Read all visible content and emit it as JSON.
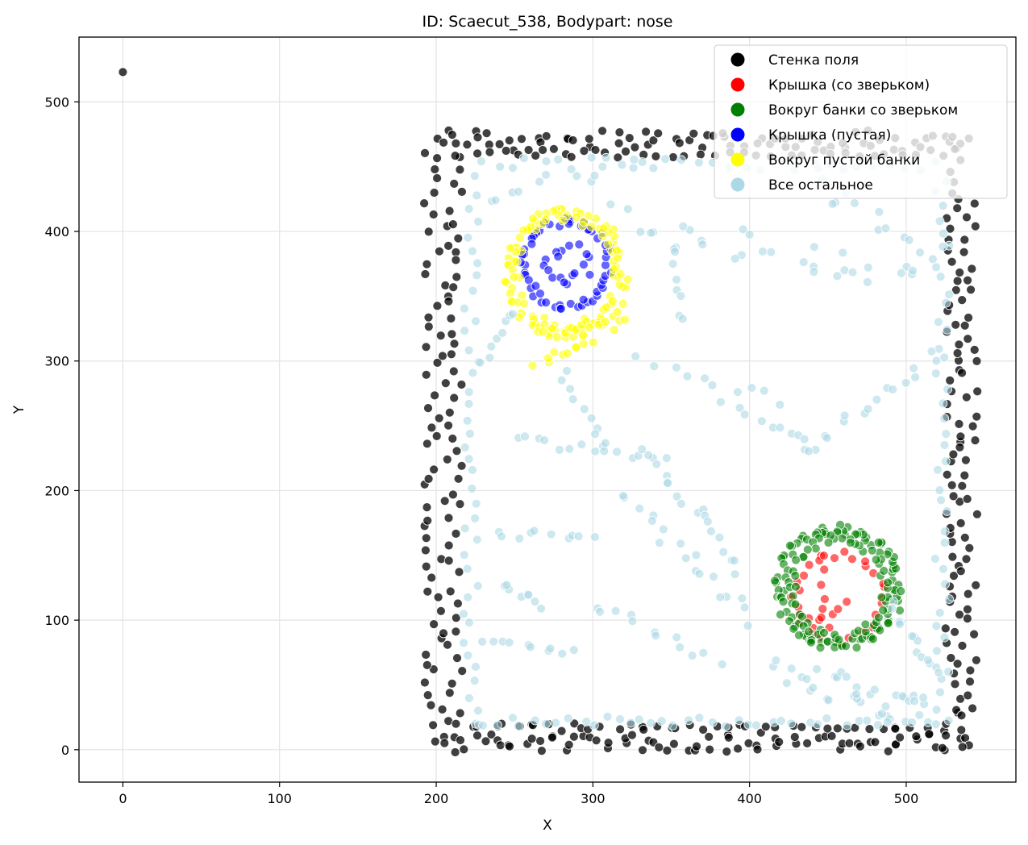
{
  "chart_data": {
    "type": "scatter",
    "title": "ID: Scaecut_538, Bodypart: nose",
    "xlabel": "X",
    "ylabel": "Y",
    "xlim": [
      -28,
      570
    ],
    "ylim": [
      -25,
      550
    ],
    "xticks": [
      0,
      100,
      200,
      300,
      400,
      500
    ],
    "yticks": [
      0,
      100,
      200,
      300,
      400,
      500
    ],
    "grid": true,
    "legend_position": "top-right",
    "series": [
      {
        "name": "Стенка поля",
        "color": "#000000",
        "opacity": 0.75,
        "groups": [
          {
            "shape": "point",
            "x": 0,
            "y": 523
          },
          {
            "shape": "line",
            "from": [
              200,
              5
            ],
            "to": [
              200,
              470
            ],
            "n": 60,
            "jitter": [
              8,
              3
            ]
          },
          {
            "shape": "line",
            "from": [
              212,
              470
            ],
            "to": [
              212,
              10
            ],
            "n": 45,
            "jitter": [
              5,
              3
            ]
          },
          {
            "shape": "line",
            "from": [
              205,
              5
            ],
            "to": [
              540,
              5
            ],
            "n": 75,
            "jitter": [
              4,
              7
            ]
          },
          {
            "shape": "line",
            "from": [
              215,
              18
            ],
            "to": [
              525,
              15
            ],
            "n": 45,
            "jitter": [
              4,
              3
            ]
          },
          {
            "shape": "line",
            "from": [
              205,
              470
            ],
            "to": [
              540,
              470
            ],
            "n": 75,
            "jitter": [
              4,
              8
            ]
          },
          {
            "shape": "line",
            "from": [
              215,
              460
            ],
            "to": [
              525,
              460
            ],
            "n": 35,
            "jitter": [
              4,
              3
            ]
          },
          {
            "shape": "line",
            "from": [
              530,
              10
            ],
            "to": [
              530,
              470
            ],
            "n": 60,
            "jitter": [
              5,
              3
            ]
          },
          {
            "shape": "line",
            "from": [
              540,
              5
            ],
            "to": [
              540,
              420
            ],
            "n": 45,
            "jitter": [
              6,
              3
            ]
          }
        ]
      },
      {
        "name": "Крышка (со зверьком)",
        "color": "#ff0000",
        "opacity": 0.6,
        "groups": [
          {
            "shape": "ring",
            "cx": 457,
            "cy": 117,
            "rx": 28,
            "ry": 33,
            "n": 30,
            "jitter": [
              3,
              3
            ]
          },
          {
            "shape": "line",
            "from": [
              437,
              100
            ],
            "to": [
              463,
              112
            ],
            "n": 6,
            "jitter": [
              3,
              3
            ]
          },
          {
            "shape": "line",
            "from": [
              446,
              150
            ],
            "to": [
              449,
              95
            ],
            "n": 6,
            "jitter": [
              2,
              3
            ]
          }
        ]
      },
      {
        "name": "Вокруг банки со зверьком",
        "color": "#008000",
        "opacity": 0.6,
        "groups": [
          {
            "shape": "ring",
            "cx": 457,
            "cy": 125,
            "rx": 38,
            "ry": 45,
            "n": 100,
            "jitter": [
              4,
              4
            ]
          },
          {
            "shape": "ring",
            "cx": 457,
            "cy": 125,
            "rx": 30,
            "ry": 38,
            "n": 55,
            "jitter": [
              3,
              3
            ]
          }
        ]
      },
      {
        "name": "Крышка (пустая)",
        "color": "#0000ff",
        "opacity": 0.6,
        "groups": [
          {
            "shape": "ring",
            "cx": 283,
            "cy": 375,
            "rx": 27,
            "ry": 33,
            "n": 55,
            "jitter": [
              3,
              3
            ]
          },
          {
            "shape": "ring",
            "cx": 283,
            "cy": 375,
            "rx": 12,
            "ry": 14,
            "n": 18,
            "jitter": [
              4,
              4
            ]
          }
        ]
      },
      {
        "name": "Вокруг пустой банки",
        "color": "#ffff00",
        "opacity": 0.6,
        "groups": [
          {
            "shape": "ring",
            "cx": 283,
            "cy": 368,
            "rx": 35,
            "ry": 45,
            "n": 110,
            "jitter": [
              5,
              5
            ]
          },
          {
            "shape": "line",
            "from": [
              270,
              320
            ],
            "to": [
              318,
              330
            ],
            "n": 18,
            "jitter": [
              5,
              5
            ]
          },
          {
            "shape": "line",
            "from": [
              265,
              300
            ],
            "to": [
              298,
              315
            ],
            "n": 10,
            "jitter": [
              4,
              4
            ]
          }
        ]
      },
      {
        "name": "Все остальное",
        "color": "#add8e6",
        "opacity": 0.6,
        "groups": [
          {
            "shape": "line",
            "from": [
              222,
              20
            ],
            "to": [
              222,
              440
            ],
            "n": 40,
            "jitter": [
              5,
              3
            ]
          },
          {
            "shape": "line",
            "from": [
              523,
              20
            ],
            "to": [
              523,
              440
            ],
            "n": 40,
            "jitter": [
              5,
              3
            ]
          },
          {
            "shape": "line",
            "from": [
              225,
              22
            ],
            "to": [
              520,
              22
            ],
            "n": 40,
            "jitter": [
              3,
              4
            ]
          },
          {
            "shape": "line",
            "from": [
              228,
              452
            ],
            "to": [
              520,
              452
            ],
            "n": 30,
            "jitter": [
              3,
              5
            ]
          },
          {
            "shape": "line",
            "from": [
              230,
              425
            ],
            "to": [
              330,
              455
            ],
            "n": 12,
            "jitter": [
              6,
              6
            ]
          },
          {
            "shape": "line",
            "from": [
              320,
              410
            ],
            "to": [
              510,
              360
            ],
            "n": 30,
            "jitter": [
              10,
              12
            ]
          },
          {
            "shape": "line",
            "from": [
              440,
              440
            ],
            "to": [
              520,
              380
            ],
            "n": 14,
            "jitter": [
              6,
              10
            ]
          },
          {
            "shape": "line",
            "from": [
              250,
              240
            ],
            "to": [
              345,
              225
            ],
            "n": 14,
            "jitter": [
              4,
              4
            ]
          },
          {
            "shape": "line",
            "from": [
              335,
              230
            ],
            "to": [
              395,
              140
            ],
            "n": 18,
            "jitter": [
              5,
              5
            ]
          },
          {
            "shape": "line",
            "from": [
              385,
              265
            ],
            "to": [
              445,
              235
            ],
            "n": 10,
            "jitter": [
              4,
              4
            ]
          },
          {
            "shape": "line",
            "from": [
              435,
              230
            ],
            "to": [
              520,
              305
            ],
            "n": 16,
            "jitter": [
              5,
              5
            ]
          },
          {
            "shape": "line",
            "from": [
              320,
              200
            ],
            "to": [
              400,
              100
            ],
            "n": 18,
            "jitter": [
              6,
              6
            ]
          },
          {
            "shape": "line",
            "from": [
              230,
              80
            ],
            "to": [
              290,
              75
            ],
            "n": 10,
            "jitter": [
              4,
              5
            ]
          },
          {
            "shape": "line",
            "from": [
              300,
              110
            ],
            "to": [
              380,
              70
            ],
            "n": 12,
            "jitter": [
              4,
              5
            ]
          },
          {
            "shape": "line",
            "from": [
              280,
              290
            ],
            "to": [
              310,
              230
            ],
            "n": 10,
            "jitter": [
              4,
              4
            ]
          },
          {
            "shape": "line",
            "from": [
              230,
              300
            ],
            "to": [
              250,
              340
            ],
            "n": 8,
            "jitter": [
              4,
              4
            ]
          },
          {
            "shape": "line",
            "from": [
              420,
              60
            ],
            "to": [
              500,
              30
            ],
            "n": 30,
            "jitter": [
              10,
              12
            ]
          },
          {
            "shape": "line",
            "from": [
              490,
              110
            ],
            "to": [
              520,
              60
            ],
            "n": 14,
            "jitter": [
              5,
              5
            ]
          },
          {
            "shape": "line",
            "from": [
              350,
              390
            ],
            "to": [
              360,
              330
            ],
            "n": 8,
            "jitter": [
              4,
              4
            ]
          },
          {
            "shape": "line",
            "from": [
              330,
              300
            ],
            "to": [
              420,
              270
            ],
            "n": 10,
            "jitter": [
              5,
              5
            ]
          },
          {
            "shape": "line",
            "from": [
              500,
              40
            ],
            "to": [
              510,
              40
            ],
            "n": 6,
            "jitter": [
              5,
              5
            ]
          },
          {
            "shape": "line",
            "from": [
              240,
              170
            ],
            "to": [
              300,
              160
            ],
            "n": 10,
            "jitter": [
              5,
              5
            ]
          },
          {
            "shape": "line",
            "from": [
              240,
              130
            ],
            "to": [
              270,
              110
            ],
            "n": 8,
            "jitter": [
              4,
              4
            ]
          }
        ]
      }
    ]
  }
}
